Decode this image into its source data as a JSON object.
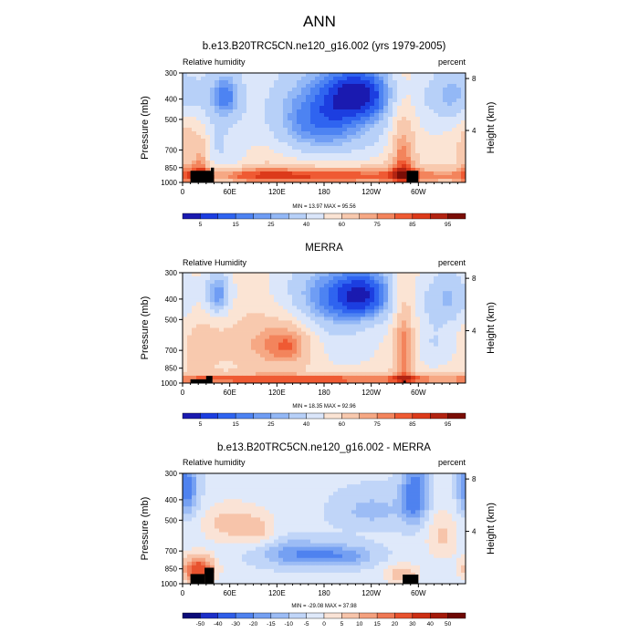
{
  "title": "ANN",
  "colors": {
    "seq": [
      "#1a1ab0",
      "#1c3ee0",
      "#2f64f0",
      "#4d83f2",
      "#6f9df4",
      "#93b8f6",
      "#b7d0f8",
      "#dbe6fa",
      "#fbe4d4",
      "#f8c9ae",
      "#f6a884",
      "#f3845c",
      "#ef5a33",
      "#dc3a1a",
      "#b32412",
      "#7a0d06"
    ],
    "diff": [
      "#0b0b78",
      "#1c2fc8",
      "#2f5ee8",
      "#4f82ef",
      "#75a0f2",
      "#9cbcf5",
      "#c0d5f8",
      "#dfe9fa",
      "#fae3d6",
      "#f7c4aa",
      "#f4a07e",
      "#ef7854",
      "#e8522e",
      "#cc2f14",
      "#a41a0a",
      "#6e0804"
    ],
    "land": "#000000"
  },
  "panels": [
    {
      "title": "b.e13.B20TRC5CN.ne120_g16.002 (yrs 1979-2005)",
      "left_label": "Relative humidity",
      "right_label": "percent",
      "min_max": "MIN = 13.97  MAX = 95.56",
      "colorbar_labels": [
        "5",
        "15",
        "25",
        "40",
        "60",
        "75",
        "85",
        "95"
      ]
    },
    {
      "title": "MERRA",
      "left_label": "Relative Humidity",
      "right_label": "percent",
      "min_max": "MIN = 18.35  MAX = 92.96",
      "colorbar_labels": [
        "5",
        "15",
        "25",
        "40",
        "60",
        "75",
        "85",
        "95"
      ]
    },
    {
      "title": "b.e13.B20TRC5CN.ne120_g16.002 - MERRA",
      "left_label": "Relative humidity",
      "right_label": "percent",
      "min_max": "MIN = -29.08  MAX = 37.98",
      "colorbar_labels": [
        "-50",
        "-40",
        "-30",
        "-20",
        "-15",
        "-10",
        "-5",
        "0",
        "5",
        "10",
        "15",
        "20",
        "30",
        "40",
        "50"
      ]
    }
  ],
  "axis": {
    "ylabel": "Pressure (mb)",
    "y2label": "Height (km)",
    "yticks": [
      "300",
      "400",
      "500",
      "700",
      "850",
      "1000"
    ],
    "y2ticks": [
      "8",
      "4"
    ],
    "xticks": [
      "0",
      "60E",
      "120E",
      "180",
      "120W",
      "60W"
    ]
  },
  "chart_data": [
    {
      "type": "heatmap",
      "title": "b.e13.B20TRC5CN.ne120_g16.002 (yrs 1979-2005)",
      "variable": "Relative humidity",
      "units": "percent",
      "x": "longitude 0-360",
      "y": "pressure 300-1000 mb",
      "levels": [
        5,
        10,
        15,
        20,
        25,
        30,
        40,
        50,
        60,
        70,
        75,
        80,
        85,
        90,
        95
      ],
      "min": 13.97,
      "max": 95.56,
      "base": 55,
      "features": [
        {
          "lon": 160,
          "p": 930,
          "w": 200,
          "h": 60,
          "a": 30
        },
        {
          "lon": 5,
          "p": 700,
          "w": 12,
          "h": 220,
          "a": 20
        },
        {
          "lon": 25,
          "p": 800,
          "w": 8,
          "h": 180,
          "a": 25
        },
        {
          "lon": 45,
          "p": 700,
          "w": 30,
          "h": 200,
          "a": -20
        },
        {
          "lon": 90,
          "p": 650,
          "w": 40,
          "h": 150,
          "a": 10
        },
        {
          "lon": 165,
          "p": 460,
          "w": 50,
          "h": 180,
          "a": -30
        },
        {
          "lon": 230,
          "p": 370,
          "w": 35,
          "h": 90,
          "a": -40
        },
        {
          "lon": 200,
          "p": 580,
          "w": 70,
          "h": 120,
          "a": -15
        },
        {
          "lon": 55,
          "p": 380,
          "w": 15,
          "h": 80,
          "a": -30
        },
        {
          "lon": 15,
          "p": 380,
          "w": 20,
          "h": 100,
          "a": -10
        },
        {
          "lon": 280,
          "p": 700,
          "w": 12,
          "h": 260,
          "a": 28
        },
        {
          "lon": 340,
          "p": 380,
          "w": 25,
          "h": 90,
          "a": -25
        },
        {
          "lon": 100,
          "p": 900,
          "w": 40,
          "h": 80,
          "a": 5
        }
      ],
      "land": [
        {
          "lon0": 10,
          "lon1": 36,
          "p0": 880
        },
        {
          "lon0": 36,
          "lon1": 40,
          "p0": 850
        },
        {
          "lon0": 285,
          "lon1": 300,
          "p0": 880
        }
      ]
    },
    {
      "type": "heatmap",
      "title": "MERRA",
      "variable": "Relative Humidity",
      "units": "percent",
      "x": "longitude 0-360",
      "y": "pressure 300-1000 mb",
      "levels": [
        5,
        10,
        15,
        20,
        25,
        30,
        40,
        50,
        60,
        70,
        75,
        80,
        85,
        90,
        95
      ],
      "min": 18.35,
      "max": 92.96,
      "base": 55,
      "features": [
        {
          "lon": 160,
          "p": 960,
          "w": 220,
          "h": 40,
          "a": 30
        },
        {
          "lon": 45,
          "p": 380,
          "w": 12,
          "h": 70,
          "a": -35
        },
        {
          "lon": 110,
          "p": 650,
          "w": 35,
          "h": 150,
          "a": 18
        },
        {
          "lon": 140,
          "p": 650,
          "w": 20,
          "h": 120,
          "a": 15
        },
        {
          "lon": 175,
          "p": 390,
          "w": 40,
          "h": 120,
          "a": -30
        },
        {
          "lon": 235,
          "p": 380,
          "w": 30,
          "h": 90,
          "a": -40
        },
        {
          "lon": 205,
          "p": 650,
          "w": 35,
          "h": 150,
          "a": -10
        },
        {
          "lon": 282,
          "p": 650,
          "w": 10,
          "h": 280,
          "a": 28
        },
        {
          "lon": 20,
          "p": 650,
          "w": 20,
          "h": 200,
          "a": 10
        },
        {
          "lon": 340,
          "p": 390,
          "w": 25,
          "h": 90,
          "a": -25
        },
        {
          "lon": 320,
          "p": 650,
          "w": 25,
          "h": 130,
          "a": -15
        }
      ],
      "land": [
        {
          "lon0": 10,
          "lon1": 36,
          "p0": 960
        },
        {
          "lon0": 30,
          "lon1": 38,
          "p0": 925
        },
        {
          "lon0": 281,
          "lon1": 284,
          "p0": 975
        }
      ]
    },
    {
      "type": "heatmap",
      "title": "b.e13.B20TRC5CN.ne120_g16.002 - MERRA",
      "variable": "Relative humidity",
      "units": "percent",
      "x": "longitude 0-360",
      "y": "pressure 300-1000 mb",
      "levels": [
        -50,
        -40,
        -30,
        -20,
        -15,
        -10,
        -5,
        0,
        5,
        10,
        15,
        20,
        30,
        40,
        50
      ],
      "min": -29.08,
      "max": 37.98,
      "base": -4,
      "features": [
        {
          "lon": 5,
          "p": 350,
          "w": 10,
          "h": 80,
          "a": -20
        },
        {
          "lon": 60,
          "p": 520,
          "w": 25,
          "h": 80,
          "a": 12
        },
        {
          "lon": 100,
          "p": 560,
          "w": 15,
          "h": 80,
          "a": 8
        },
        {
          "lon": 140,
          "p": 720,
          "w": 30,
          "h": 70,
          "a": -14
        },
        {
          "lon": 200,
          "p": 740,
          "w": 30,
          "h": 60,
          "a": -15
        },
        {
          "lon": 295,
          "p": 380,
          "w": 12,
          "h": 90,
          "a": -22
        },
        {
          "lon": 330,
          "p": 600,
          "w": 15,
          "h": 120,
          "a": 10
        },
        {
          "lon": 20,
          "p": 860,
          "w": 15,
          "h": 90,
          "a": 30
        },
        {
          "lon": 280,
          "p": 900,
          "w": 15,
          "h": 70,
          "a": 14
        },
        {
          "lon": 240,
          "p": 450,
          "w": 30,
          "h": 60,
          "a": -8
        }
      ],
      "land": [
        {
          "lon0": 10,
          "lon1": 28,
          "p0": 900
        },
        {
          "lon0": 28,
          "lon1": 40,
          "p0": 840
        },
        {
          "lon0": 280,
          "lon1": 300,
          "p0": 905
        }
      ]
    }
  ]
}
